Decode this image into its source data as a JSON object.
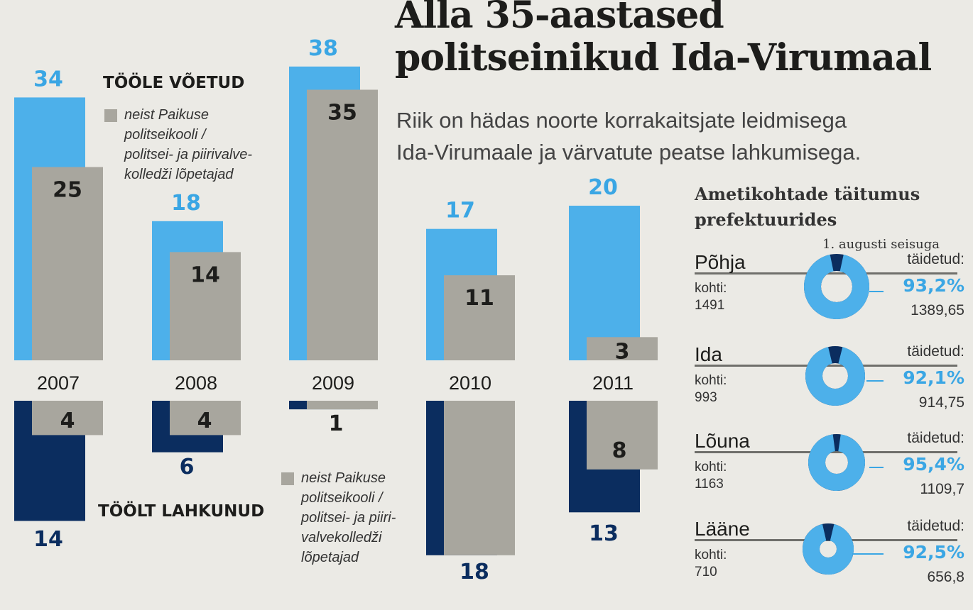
{
  "title": "Alla 35-aastased\npolitseinikud Ida-Virumaal",
  "subtitle": "Riik on hädas noorte korrakaitsjate leidmisega\nIda-Virumaale ja värvatute peatse lahkumisega.",
  "headers": {
    "hired": "TÖÖLE VÕETUD",
    "left": "TÖÖLT LAHKUNUD"
  },
  "legend_hired": "neist Paikuse\npolitseikooli /\npolitsei- ja piirivalve-\nkolledži lõpetajad",
  "legend_left": "neist Paikuse\npolitseikooli /\npolitsei- ja piiri-\nvalvekolledži\nlõpetajad",
  "colors": {
    "hired": "#4db0ea",
    "graduates": "#a8a69e",
    "left": "#0b2d5f",
    "text_blue": "#3aa6e4",
    "ring_mark": "#0b2d5f"
  },
  "chart_data": {
    "type": "bar",
    "categories": [
      "2007",
      "2008",
      "2009",
      "2010",
      "2011"
    ],
    "series": [
      {
        "name": "TÖÖLE VÕETUD",
        "values": [
          34,
          18,
          38,
          17,
          20
        ]
      },
      {
        "name": "neist Paikuse politseikooli / politsei- ja piirivalvekolledži lõpetajad (tööle võetud)",
        "values": [
          25,
          14,
          35,
          11,
          3
        ]
      },
      {
        "name": "TÖÖLT LAHKUNUD",
        "values": [
          14,
          6,
          1,
          18,
          13
        ]
      },
      {
        "name": "neist Paikuse politseikooli / politsei- ja piirivalvekolledži lõpetajad (töölt lahkunud)",
        "values": [
          4,
          4,
          1,
          18,
          8
        ]
      }
    ],
    "title": "Alla 35-aastased politseinikud Ida-Virumaal",
    "xlabel": "",
    "ylabel": ""
  },
  "prefectures": {
    "title": "Ametikohtade täitumus\nprefektuurides",
    "as_of": "1. augusti seisuga",
    "places_label": "kohti:",
    "filled_label": "täidetud:",
    "items": [
      {
        "name": "Põhja",
        "places": "1491",
        "percent": "93,2%",
        "percent_value": 93.2,
        "filled": "1389,65"
      },
      {
        "name": "Ida",
        "places": "993",
        "percent": "92,1%",
        "percent_value": 92.1,
        "filled": "914,75"
      },
      {
        "name": "Lõuna",
        "places": "1163",
        "percent": "95,4%",
        "percent_value": 95.4,
        "filled": "1109,7"
      },
      {
        "name": "Lääne",
        "places": "710",
        "percent": "92,5%",
        "percent_value": 92.5,
        "filled": "656,8"
      }
    ]
  }
}
